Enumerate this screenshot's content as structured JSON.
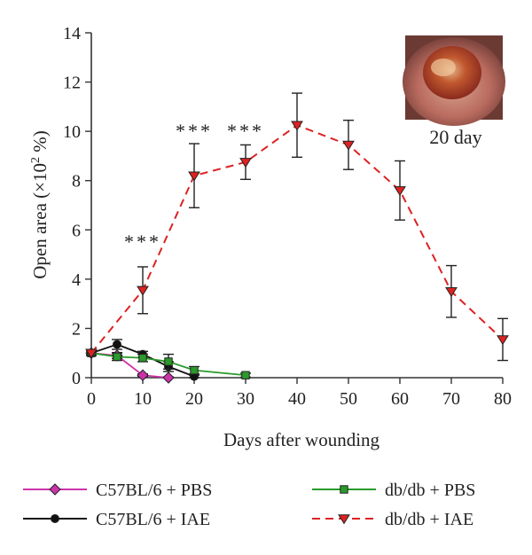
{
  "chart_data": {
    "type": "line",
    "xlabel": "Days after wounding",
    "ylabel_main": "Open area (×10",
    "ylabel_sup": "2",
    "ylabel_tail": " %)",
    "xlim": [
      0,
      80
    ],
    "ylim": [
      0,
      14
    ],
    "xticks": [
      0,
      10,
      20,
      30,
      40,
      50,
      60,
      70,
      80
    ],
    "yticks": [
      0,
      2,
      4,
      6,
      8,
      10,
      12,
      14
    ],
    "grid": false,
    "legend_position": "bottom",
    "series": [
      {
        "name": "C57BL/6 + PBS",
        "color": "#cc33aa",
        "marker": "diamond",
        "dash": "solid",
        "x": [
          0,
          5,
          10,
          15
        ],
        "y": [
          1.0,
          0.9,
          0.1,
          0.0
        ],
        "err": [
          0.08,
          0.12,
          0.05,
          0.03
        ]
      },
      {
        "name": "C57BL/6 + IAE",
        "color": "#111111",
        "marker": "circle",
        "dash": "solid",
        "x": [
          0,
          5,
          10,
          15,
          20
        ],
        "y": [
          1.0,
          1.35,
          0.95,
          0.45,
          0.05
        ],
        "err": [
          0.08,
          0.2,
          0.12,
          0.2,
          0.05
        ]
      },
      {
        "name": "db/db + PBS",
        "color": "#2a9a2a",
        "marker": "square",
        "dash": "solid",
        "x": [
          0,
          5,
          10,
          15,
          20,
          30
        ],
        "y": [
          1.0,
          0.85,
          0.8,
          0.65,
          0.3,
          0.1
        ],
        "err": [
          0.1,
          0.15,
          0.15,
          0.3,
          0.15,
          0.08
        ]
      },
      {
        "name": "db/db + IAE",
        "color": "#dd2222",
        "marker": "triangle-down",
        "dash": "dashed",
        "x": [
          0,
          10,
          20,
          30,
          40,
          50,
          60,
          70,
          80
        ],
        "y": [
          1.0,
          3.55,
          8.2,
          8.75,
          10.25,
          9.45,
          7.6,
          3.5,
          1.55
        ],
        "err": [
          0.1,
          0.95,
          1.3,
          0.7,
          1.3,
          1.0,
          1.2,
          1.05,
          0.85
        ]
      }
    ],
    "annotations": [
      {
        "text": "***",
        "x": 10,
        "y": 5.25
      },
      {
        "text": "***",
        "x": 20,
        "y": 9.75
      },
      {
        "text": "***",
        "x": 30,
        "y": 9.75
      }
    ],
    "inset": {
      "label": "20 day",
      "icon": "wound-photo"
    }
  }
}
